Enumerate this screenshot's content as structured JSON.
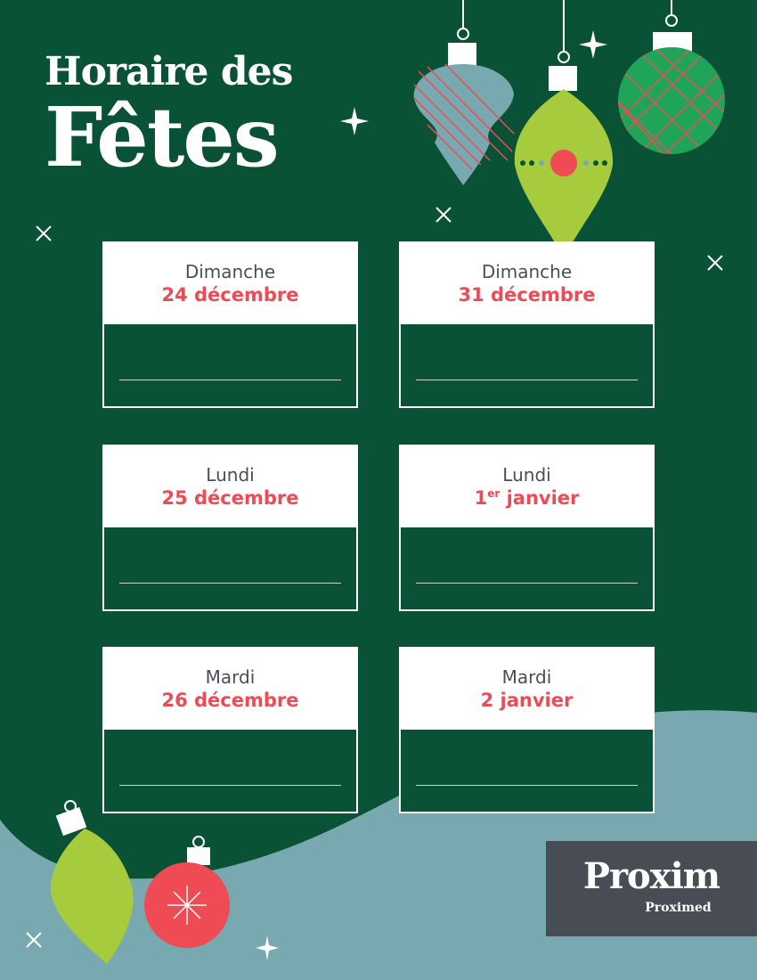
{
  "title": {
    "line1": "Horaire des",
    "line2": "Fêtes"
  },
  "colors": {
    "background": "#0a5235",
    "accent_red": "#ef4b55",
    "lime": "#a6cc3d",
    "teal": "#78a9b0",
    "logo_bg": "#474c55"
  },
  "cards": [
    {
      "day": "Dimanche",
      "date": "24 décembre"
    },
    {
      "day": "Dimanche",
      "date": "31 décembre"
    },
    {
      "day": "Lundi",
      "date": "25 décembre"
    },
    {
      "day": "Lundi",
      "date_num": "1",
      "date_sup": "er",
      "date_rest": " janvier"
    },
    {
      "day": "Mardi",
      "date": "26 décembre"
    },
    {
      "day": "Mardi",
      "date": "2 janvier"
    }
  ],
  "logo": {
    "main": "Proxim",
    "sub": "Proximed"
  }
}
